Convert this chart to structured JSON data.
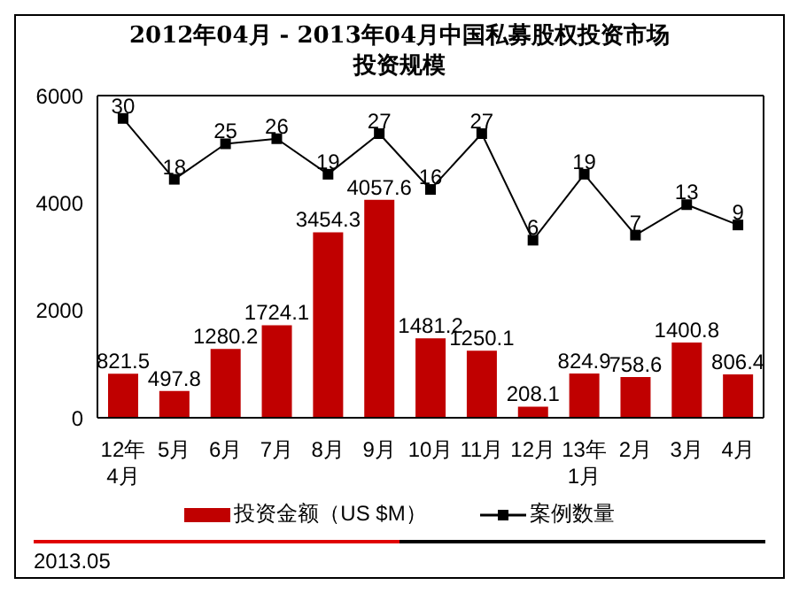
{
  "chart_data": {
    "type": "bar",
    "title": "2012年04月 - 2013年04月中国私募股权投资市场",
    "subtitle": "投资规模",
    "categories": [
      "12年\n4月",
      "5月",
      "6月",
      "7月",
      "8月",
      "9月",
      "10月",
      "11月",
      "12月",
      "13年\n1月",
      "2月",
      "3月",
      "4月"
    ],
    "series": [
      {
        "name": "投资金额（US $M）",
        "color": "#c00000",
        "values": [
          821.5,
          497.8,
          1280.2,
          1724.1,
          3454.3,
          4057.6,
          1481.2,
          1250.1,
          208.1,
          824.9,
          758.6,
          1400.8,
          806.4
        ]
      },
      {
        "name": "案例数量",
        "type": "line",
        "axis": "y2",
        "color": "#000000",
        "marker": "square",
        "values": [
          30,
          18,
          25,
          26,
          19,
          27,
          16,
          27,
          6,
          19,
          7,
          13,
          9
        ]
      }
    ],
    "ylim": [
      0,
      6000
    ],
    "yticks": [
      0,
      2000,
      4000,
      6000
    ],
    "y2lim": [
      -29,
      34.5
    ],
    "data_labels": true,
    "grid": false,
    "legend": "bottom",
    "annotations": [
      "2013.05"
    ]
  }
}
